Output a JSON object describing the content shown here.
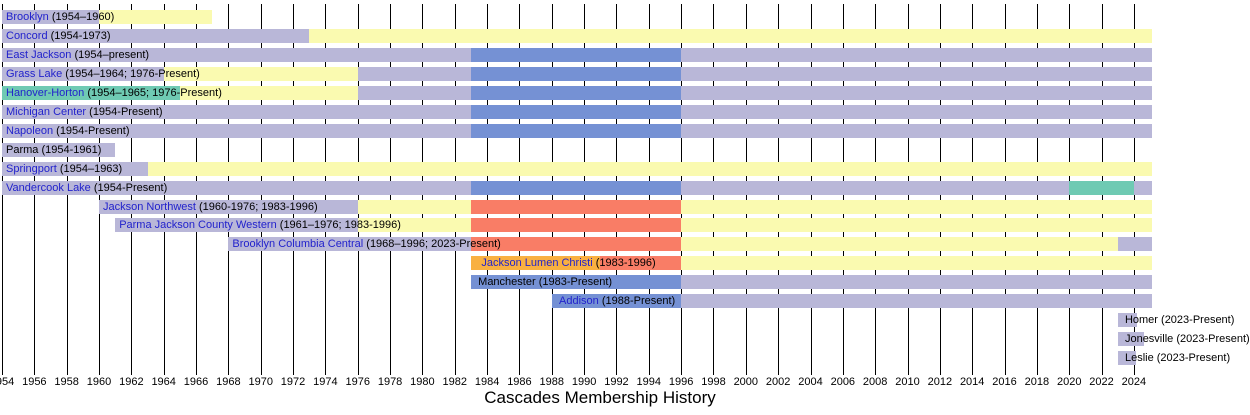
{
  "title": "Cascades Membership History",
  "colors": {
    "lavender": "#b9b7d8",
    "yellow": "#fafab0",
    "blue": "#7591d4",
    "red": "#f97d66",
    "orange": "#f9b041",
    "teal": "#6fcab3",
    "grid": "#000000",
    "link": "#2222cc",
    "text": "#000000"
  },
  "chart_data": {
    "type": "timeline",
    "subtype": "horizontal-gantt-membership",
    "title": "Cascades Membership History",
    "grid": true,
    "x_axis": {
      "start": 1954,
      "end": 2024,
      "tick_step": 2,
      "present_value": 2025.1,
      "tick_labels": [
        "1954",
        "1956",
        "1958",
        "1960",
        "1962",
        "1964",
        "1966",
        "1968",
        "1970",
        "1972",
        "1974",
        "1976",
        "1978",
        "1980",
        "1982",
        "1984",
        "1986",
        "1988",
        "1990",
        "1992",
        "1994",
        "1996",
        "1998",
        "2000",
        "2002",
        "2004",
        "2006",
        "2008",
        "2010",
        "2012",
        "2014",
        "2016",
        "2018",
        "2020",
        "2022",
        "2024"
      ]
    },
    "rows": [
      {
        "school": "Brooklyn",
        "label": "(1954–1960)",
        "is_link": true,
        "label_year": 1954,
        "segments": [
          {
            "from": 1954,
            "to": 1960,
            "color": "lavender"
          },
          {
            "from": 1960,
            "to": 1967,
            "color": "yellow"
          }
        ]
      },
      {
        "school": "Concord",
        "label": "(1954-1973)",
        "is_link": true,
        "label_year": 1954,
        "segments": [
          {
            "from": 1954,
            "to": 1973,
            "color": "lavender"
          },
          {
            "from": 1973,
            "to": 2025.1,
            "color": "yellow"
          }
        ]
      },
      {
        "school": "East Jackson",
        "label": "(1954–present)",
        "is_link": true,
        "label_year": 1954,
        "segments": [
          {
            "from": 1954,
            "to": 1983,
            "color": "lavender"
          },
          {
            "from": 1983,
            "to": 1996,
            "color": "blue"
          },
          {
            "from": 1996,
            "to": 2025.1,
            "color": "lavender"
          }
        ]
      },
      {
        "school": "Grass Lake",
        "label": "(1954–1964; 1976-Present)",
        "is_link": true,
        "label_year": 1954,
        "segments": [
          {
            "from": 1954,
            "to": 1964,
            "color": "lavender"
          },
          {
            "from": 1964,
            "to": 1976,
            "color": "yellow"
          },
          {
            "from": 1976,
            "to": 1983,
            "color": "lavender"
          },
          {
            "from": 1983,
            "to": 1996,
            "color": "blue"
          },
          {
            "from": 1996,
            "to": 2025.1,
            "color": "lavender"
          }
        ]
      },
      {
        "school": "Hanover-Horton",
        "label": "(1954–1965; 1976-Present)",
        "is_link": true,
        "label_year": 1954,
        "segments": [
          {
            "from": 1954,
            "to": 1965,
            "color": "teal"
          },
          {
            "from": 1965,
            "to": 1976,
            "color": "yellow"
          },
          {
            "from": 1976,
            "to": 1983,
            "color": "lavender"
          },
          {
            "from": 1983,
            "to": 1996,
            "color": "blue"
          },
          {
            "from": 1996,
            "to": 2025.1,
            "color": "lavender"
          }
        ]
      },
      {
        "school": "Michigan Center",
        "label": "(1954-Present)",
        "is_link": true,
        "label_year": 1954,
        "segments": [
          {
            "from": 1954,
            "to": 1983,
            "color": "lavender"
          },
          {
            "from": 1983,
            "to": 1996,
            "color": "blue"
          },
          {
            "from": 1996,
            "to": 2025.1,
            "color": "lavender"
          }
        ]
      },
      {
        "school": "Napoleon",
        "label": "(1954-Present)",
        "is_link": true,
        "label_year": 1954,
        "segments": [
          {
            "from": 1954,
            "to": 1983,
            "color": "lavender"
          },
          {
            "from": 1983,
            "to": 1996,
            "color": "blue"
          },
          {
            "from": 1996,
            "to": 2025.1,
            "color": "lavender"
          }
        ]
      },
      {
        "school": "Parma",
        "label": "(1954-1961)",
        "is_link": false,
        "label_year": 1954,
        "segments": [
          {
            "from": 1954,
            "to": 1961,
            "color": "lavender"
          }
        ]
      },
      {
        "school": "Springport",
        "label": "(1954–1963)",
        "is_link": true,
        "label_year": 1954,
        "segments": [
          {
            "from": 1954,
            "to": 1963,
            "color": "lavender"
          },
          {
            "from": 1963,
            "to": 2025.1,
            "color": "yellow"
          }
        ]
      },
      {
        "school": "Vandercook Lake",
        "label": "(1954-Present)",
        "is_link": true,
        "label_year": 1954,
        "segments": [
          {
            "from": 1954,
            "to": 1983,
            "color": "lavender"
          },
          {
            "from": 1983,
            "to": 1996,
            "color": "blue"
          },
          {
            "from": 1996,
            "to": 2020,
            "color": "lavender"
          },
          {
            "from": 2020,
            "to": 2024,
            "color": "teal"
          },
          {
            "from": 2024,
            "to": 2025.1,
            "color": "lavender"
          }
        ]
      },
      {
        "school": "Jackson Northwest",
        "label": "(1960-1976; 1983-1996)",
        "is_link": true,
        "label_year": 1960,
        "segments": [
          {
            "from": 1960,
            "to": 1976,
            "color": "lavender"
          },
          {
            "from": 1976,
            "to": 1983,
            "color": "yellow"
          },
          {
            "from": 1983,
            "to": 1996,
            "color": "red"
          },
          {
            "from": 1996,
            "to": 2025.1,
            "color": "yellow"
          }
        ]
      },
      {
        "school": "Parma Jackson County Western",
        "label": "(1961–1976; 1983-1996)",
        "is_link": true,
        "label_year": 1961,
        "segments": [
          {
            "from": 1961,
            "to": 1976,
            "color": "lavender"
          },
          {
            "from": 1976,
            "to": 1983,
            "color": "yellow"
          },
          {
            "from": 1983,
            "to": 1996,
            "color": "red"
          },
          {
            "from": 1996,
            "to": 2025.1,
            "color": "yellow"
          }
        ]
      },
      {
        "school": "Brooklyn Columbia Central",
        "label": "(1968–1996; 2023-Present)",
        "is_link": true,
        "label_year": 1968,
        "segments": [
          {
            "from": 1968,
            "to": 1983,
            "color": "lavender"
          },
          {
            "from": 1983,
            "to": 1996,
            "color": "red"
          },
          {
            "from": 1996,
            "to": 2023,
            "color": "yellow"
          },
          {
            "from": 2023,
            "to": 2025.1,
            "color": "lavender"
          }
        ]
      },
      {
        "school": "Jackson Lumen Christi",
        "label": "(1983-1996)",
        "is_link": true,
        "label_year": 1983.4,
        "segments": [
          {
            "from": 1983,
            "to": 1991,
            "color": "orange"
          },
          {
            "from": 1991,
            "to": 1996,
            "color": "red"
          },
          {
            "from": 1996,
            "to": 2025.1,
            "color": "yellow"
          }
        ]
      },
      {
        "school": "Manchester",
        "label": "(1983-Present)",
        "is_link": false,
        "label_year": 1983.2,
        "segments": [
          {
            "from": 1983,
            "to": 1996,
            "color": "blue"
          },
          {
            "from": 1996,
            "to": 2025.1,
            "color": "lavender"
          }
        ]
      },
      {
        "school": "Addison",
        "label": "(1988-Present)",
        "is_link": true,
        "label_year": 1988.2,
        "segments": [
          {
            "from": 1988,
            "to": 1996,
            "color": "blue"
          },
          {
            "from": 1996,
            "to": 2025.1,
            "color": "lavender"
          }
        ]
      },
      {
        "school": "Homer",
        "label": "(2023-Present)",
        "is_link": false,
        "label_year": 2023.2,
        "segments": [
          {
            "from": 2023,
            "to": 2024.2,
            "color": "lavender"
          }
        ]
      },
      {
        "school": "Jonesville",
        "label": "(2023-Present)",
        "is_link": false,
        "label_year": 2023.2,
        "segments": [
          {
            "from": 2023,
            "to": 2024.6,
            "color": "lavender"
          }
        ]
      },
      {
        "school": "Leslie",
        "label": "(2023-Present)",
        "is_link": false,
        "label_year": 2023.2,
        "segments": [
          {
            "from": 2023,
            "to": 2024.1,
            "color": "lavender"
          }
        ]
      }
    ]
  }
}
